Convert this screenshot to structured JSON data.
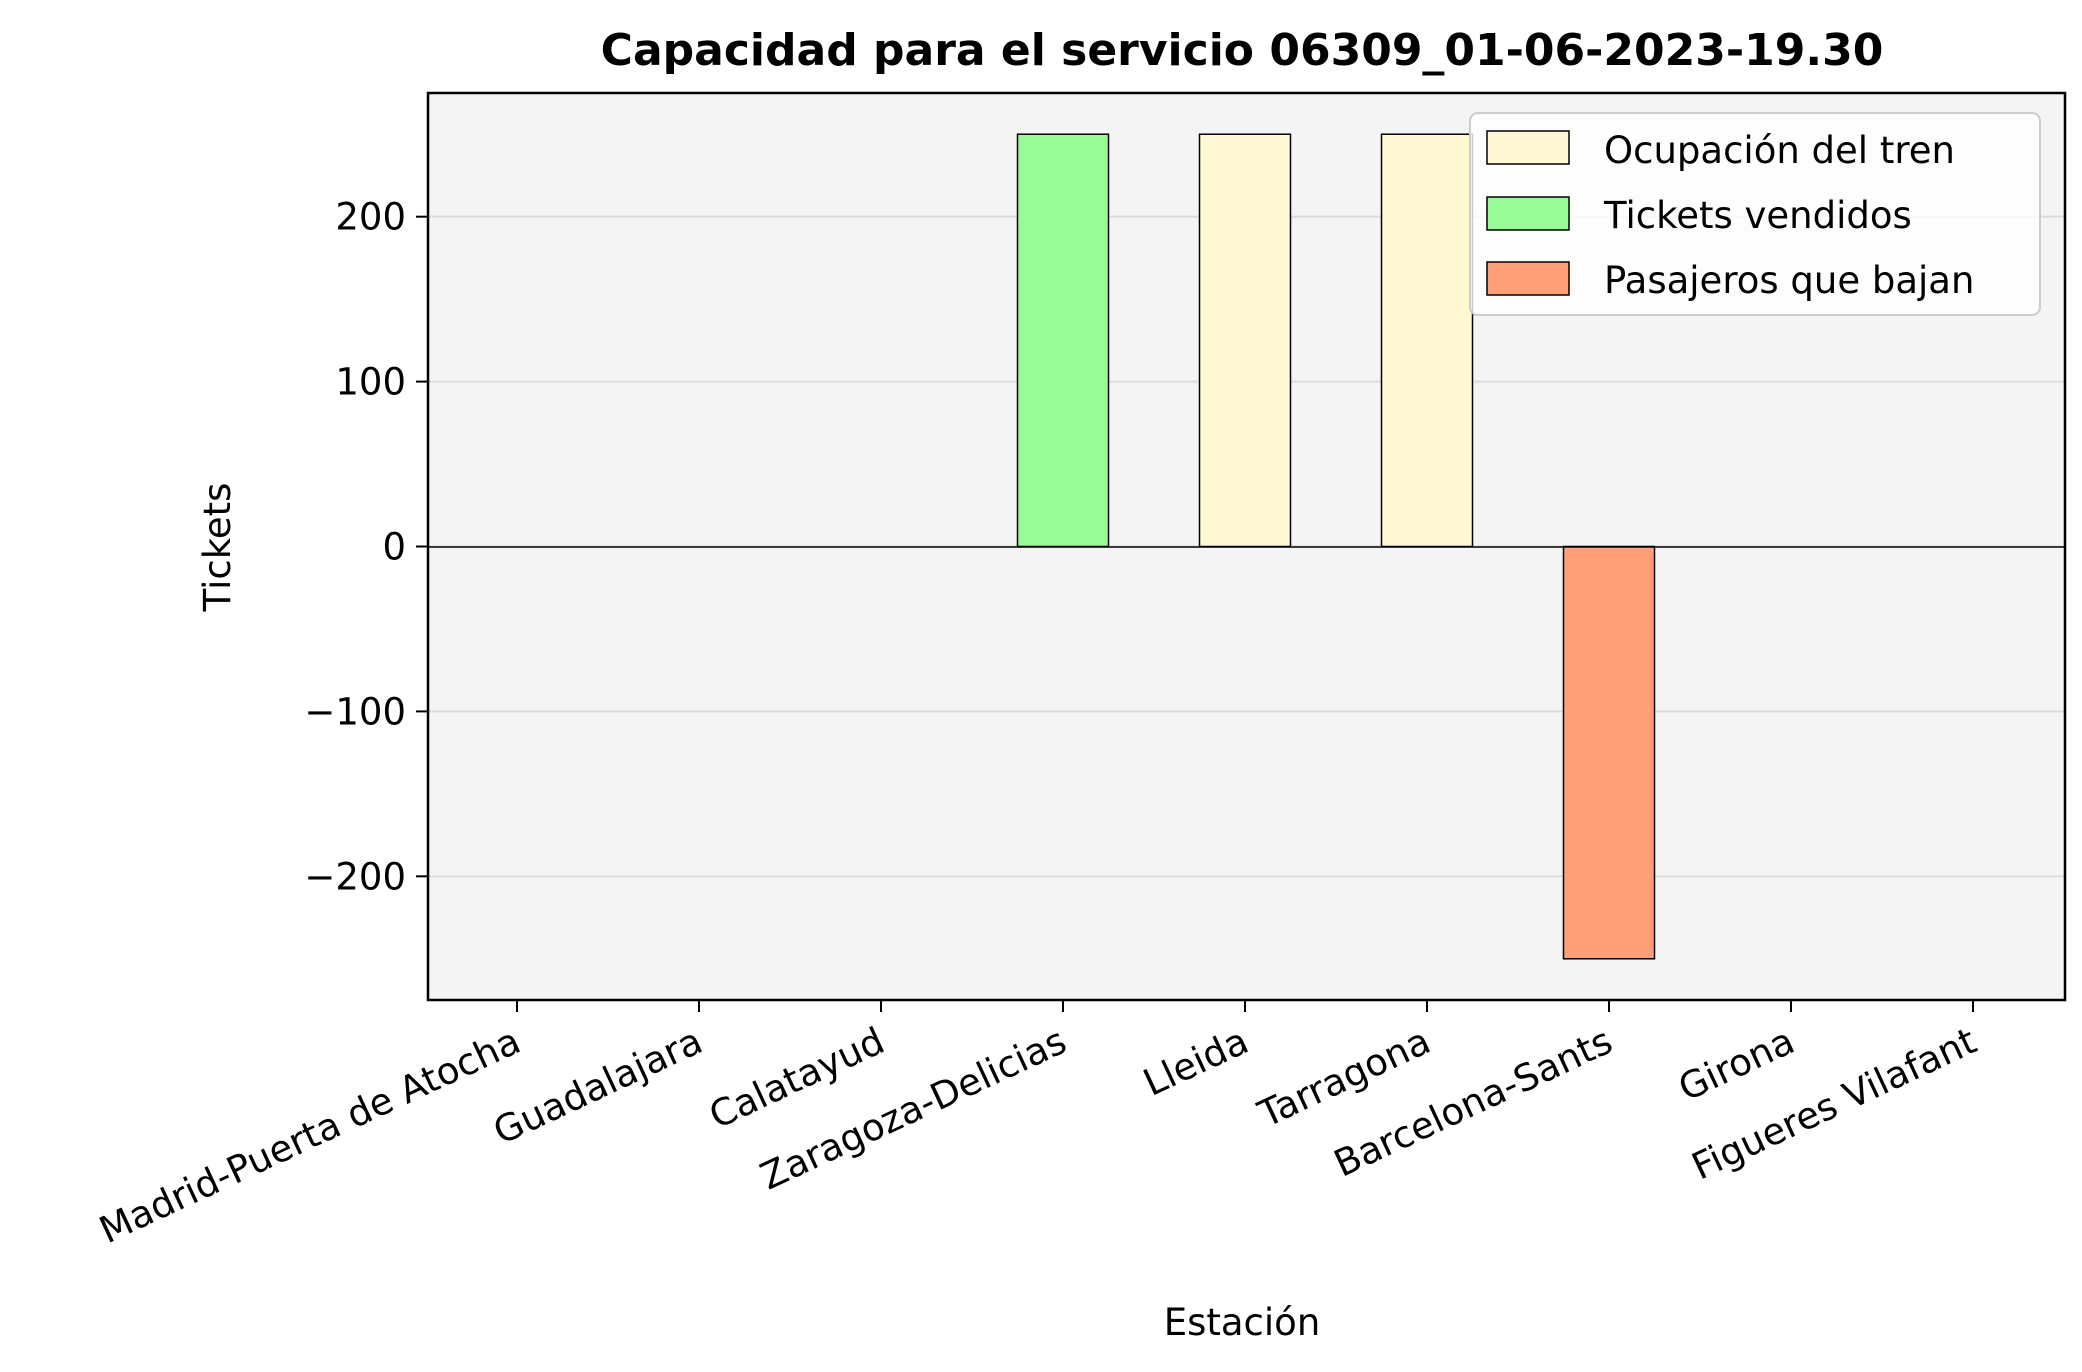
{
  "chart_data": {
    "type": "bar",
    "title": "Capacidad para el servicio 06309_01-06-2023-19.30",
    "xlabel": "Estación",
    "ylabel": "Tickets",
    "categories": [
      "Madrid-Puerta de Atocha",
      "Guadalajara",
      "Calatayud",
      "Zaragoza-Delicias",
      "Lleida",
      "Tarragona",
      "Barcelona-Sants",
      "Girona",
      "Figueres Vilafant"
    ],
    "series": [
      {
        "name": "Ocupación del tren",
        "color": "#fff8d2",
        "values": [
          0,
          0,
          0,
          0,
          250,
          250,
          0,
          0,
          0
        ]
      },
      {
        "name": "Tickets vendidos",
        "color": "#98fb98",
        "values": [
          0,
          0,
          0,
          250,
          0,
          0,
          0,
          0,
          0
        ]
      },
      {
        "name": "Pasajeros que bajan",
        "color": "#ffa07a",
        "values": [
          0,
          0,
          0,
          0,
          0,
          0,
          -250,
          0,
          0
        ]
      }
    ],
    "ylim": [
      -275,
      275
    ],
    "yticks": [
      -200,
      -100,
      0,
      100,
      200
    ],
    "ytick_labels": [
      "−200",
      "−100",
      "0",
      "100",
      "200"
    ],
    "grid": "horizontal",
    "legend_position": "top-right",
    "plot_background": "#f4f4f4"
  }
}
